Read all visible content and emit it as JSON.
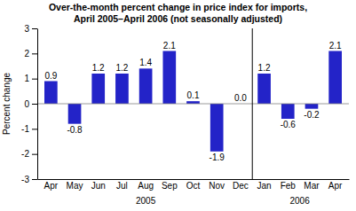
{
  "chart_data": {
    "type": "bar",
    "title": "Over-the-month percent change in price index for imports,",
    "subtitle": "April 2005–April 2006 (not seasonally adjusted)",
    "y_label": "Percent change",
    "categories": [
      "Apr",
      "May",
      "Jun",
      "Jul",
      "Aug",
      "Sep",
      "Oct",
      "Nov",
      "Dec",
      "Jan",
      "Feb",
      "Mar",
      "Apr"
    ],
    "values": [
      0.9,
      -0.8,
      1.2,
      1.2,
      1.4,
      2.1,
      0.1,
      -1.9,
      0.0,
      1.2,
      -0.6,
      -0.2,
      2.1
    ],
    "value_labels": [
      "0.9",
      "-0.8",
      "1.2",
      "1.2",
      "1.4",
      "2.1",
      "0.1",
      "-1.9",
      "0.0",
      "1.2",
      "-0.6",
      "-0.2",
      "2.1"
    ],
    "data_labels": true,
    "color": "#2323c8",
    "ylim": [
      -3,
      3
    ],
    "yticks": [
      -3,
      -2,
      -1,
      0,
      1,
      2,
      3
    ],
    "grid": false,
    "annotations": [
      "2005",
      "2006"
    ]
  }
}
